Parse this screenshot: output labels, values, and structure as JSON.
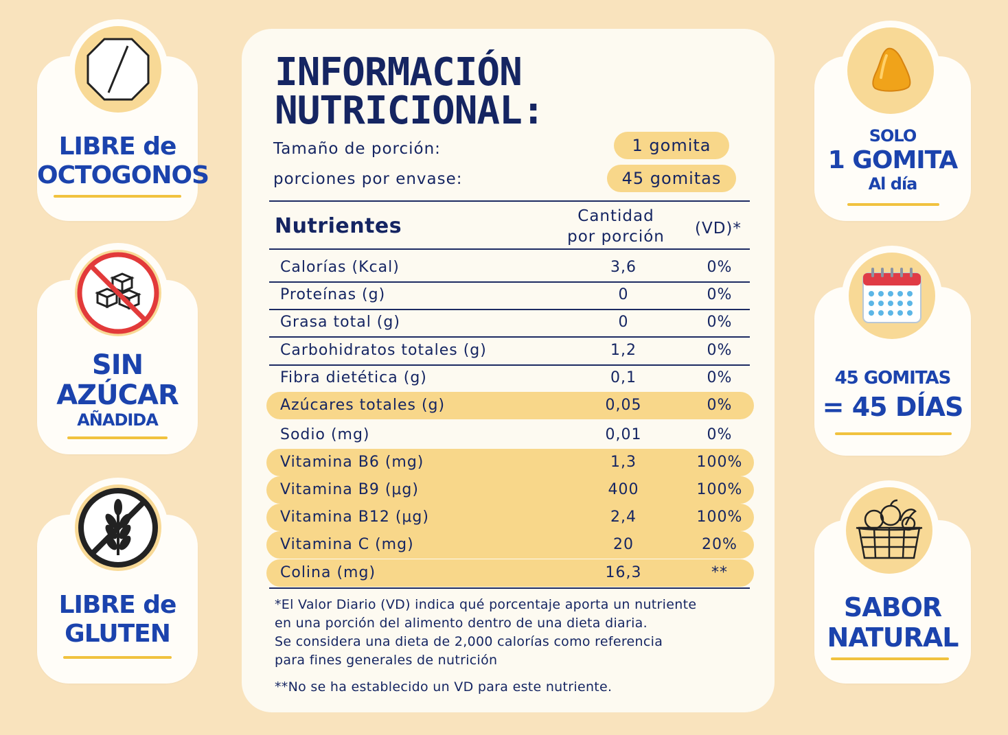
{
  "left_badges": [
    {
      "lines": [
        "LIBRE de",
        "OCTOGONOS"
      ],
      "icon": "octagon-icon"
    },
    {
      "lines": [
        "SIN",
        "AZÚCAR",
        "AÑADIDA"
      ],
      "icon": "no-sugar-cubes-icon"
    },
    {
      "lines": [
        "LIBRE de",
        "GLUTEN"
      ],
      "icon": "no-gluten-wheat-icon"
    }
  ],
  "right_badges": [
    {
      "lines": [
        "SOLO",
        "1 GOMITA",
        "Al día"
      ],
      "icon": "gummy-icon"
    },
    {
      "lines": [
        "45 GOMITAS",
        "= 45 DÍAS"
      ],
      "icon": "calendar-icon"
    },
    {
      "lines": [
        "SABOR",
        "NATURAL"
      ],
      "icon": "fruit-basket-icon"
    }
  ],
  "panel": {
    "title_line1": "INFORMACIÓN",
    "title_line2": "NUTRICIONAL:",
    "serving_size_label": "Tamaño de porción:",
    "serving_size_value": "1 gomita",
    "servings_label": "porciones por envase:",
    "servings_value": "45 gomitas",
    "col_nutrients": "Nutrientes",
    "col_amount_line1": "Cantidad",
    "col_amount_line2": "por porción",
    "col_dv": "(VD)*",
    "rows": [
      {
        "name": "Calorías (Kcal)",
        "amount": "3,6",
        "dv": "0%",
        "highlight": false
      },
      {
        "name": "Proteínas (g)",
        "amount": "0",
        "dv": "0%",
        "highlight": false
      },
      {
        "name": "Grasa total (g)",
        "amount": "0",
        "dv": "0%",
        "highlight": false
      },
      {
        "name": "Carbohidratos totales (g)",
        "amount": "1,2",
        "dv": "0%",
        "highlight": false
      },
      {
        "name": "Fibra dietética (g)",
        "amount": "0,1",
        "dv": "0%",
        "highlight": false
      },
      {
        "name": "Azúcares totales (g)",
        "amount": "0,05",
        "dv": "0%",
        "highlight": true
      },
      {
        "name": "Sodio (mg)",
        "amount": "0,01",
        "dv": "0%",
        "highlight": false
      },
      {
        "name": "Vitamina B6 (mg)",
        "amount": "1,3",
        "dv": "100%",
        "highlight": true
      },
      {
        "name": "Vitamina B9 (μg)",
        "amount": "400",
        "dv": "100%",
        "highlight": true
      },
      {
        "name": "Vitamina B12 (μg)",
        "amount": "2,4",
        "dv": "100%",
        "highlight": true
      },
      {
        "name": "Vitamina C  (mg)",
        "amount": "20",
        "dv": "20%",
        "highlight": true
      },
      {
        "name": "Colina (mg)",
        "amount": "16,3",
        "dv": "**",
        "highlight": true
      }
    ],
    "footnote_lines": [
      "*El Valor Diario (VD) indica qué porcentaje aporta un nutriente",
      "en una porción del alimento dentro de una dieta diaria.",
      "Se considera una dieta de 2,000 calorías como referencia",
      "para fines generales de nutrición"
    ],
    "footnote2": "**No se ha establecido un VD para este nutriente."
  },
  "colors": {
    "background": "#f9e3bd",
    "card": "#fffdf8",
    "accent_yellow": "#f8d78a",
    "badge_blue": "#1b43ad",
    "text_navy": "#152562"
  }
}
